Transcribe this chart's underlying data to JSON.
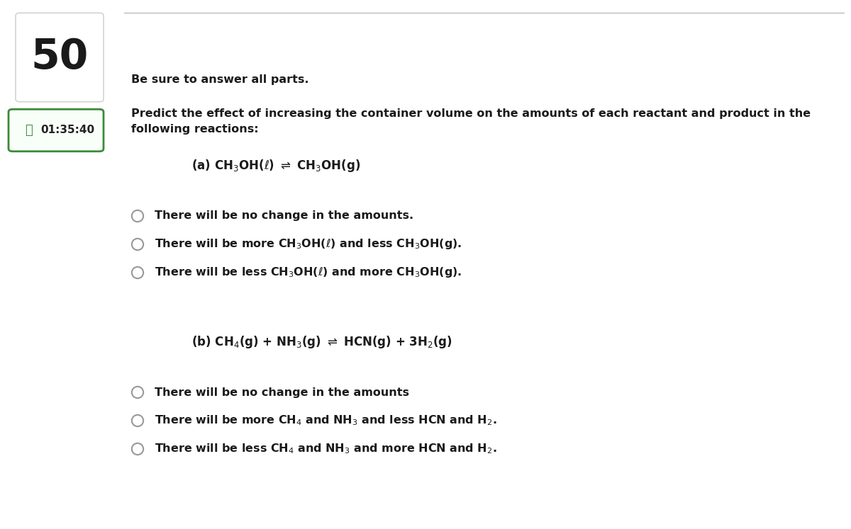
{
  "question_number": "50",
  "timer": "01:35:40",
  "bold_intro": "Be sure to answer all parts.",
  "main_question_line1": "Predict the effect of increasing the container volume on the amounts of each reactant and product in the",
  "main_question_line2": "following reactions:",
  "part_a_options": [
    "There will be no change in the amounts.",
    "There will be more CH$_3$OH($\\ell$) and less CH$_3$OH(g).",
    "There will be less CH$_3$OH($\\ell$) and more CH$_3$OH(g)."
  ],
  "part_b_options": [
    "There will be no change in the amounts",
    "There will be more CH$_4$ and NH$_3$ and less HCN and H$_2$.",
    "There will be less CH$_4$ and NH$_3$ and more HCN and H$_2$."
  ],
  "bg_color": "#ffffff",
  "text_color": "#1a1a1a",
  "border_color": "#cccccc",
  "timer_border_color": "#3a8a3a",
  "timer_text_color": "#222222",
  "radio_color": "#999999",
  "top_line_color": "#bbbbbb"
}
